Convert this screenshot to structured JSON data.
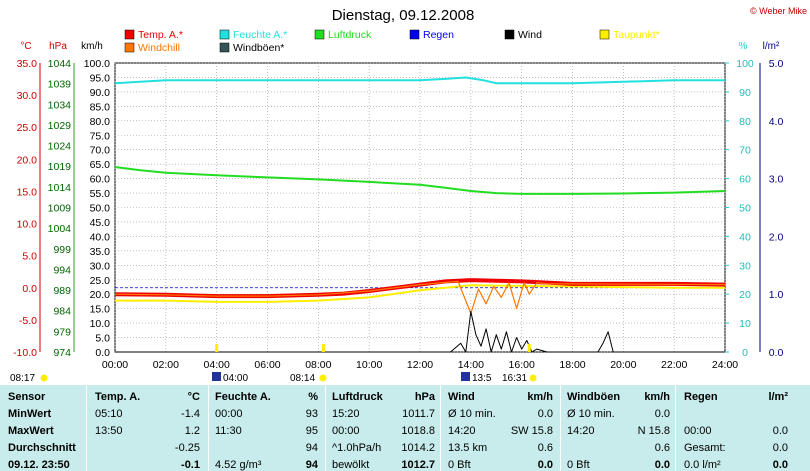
{
  "title": "Dienstag, 09.12.2008",
  "copyright": "© Weber Mike",
  "legend": [
    {
      "label": "Temp. A.*",
      "color": "#ee0000"
    },
    {
      "label": "Feuchte A.*",
      "color": "#22e0e0"
    },
    {
      "label": "Luftdruck",
      "color": "#22dd22"
    },
    {
      "label": "Regen",
      "color": "#0000ee"
    },
    {
      "label": "Wind",
      "color": "#000000"
    },
    {
      "label": "Taupunkt*",
      "color": "#ffee00"
    },
    {
      "label": "Windchill",
      "color": "#ff7700"
    },
    {
      "label": "Windböen*",
      "color": "#335555"
    }
  ],
  "axes": {
    "temp_unit": "°C",
    "pressure_unit": "hPa",
    "wind_unit": "km/h",
    "humidity_unit": "%",
    "rain_unit": "l/m²",
    "temp_ticks": [
      "35.0",
      "30.0",
      "25.0",
      "20.0",
      "15.0",
      "10.0",
      "5.0",
      "0.0",
      "-5.0",
      "-10.0"
    ],
    "pressure_ticks": [
      "1044",
      "1039",
      "1034",
      "1029",
      "1024",
      "1019",
      "1014",
      "1009",
      "1004",
      "999",
      "994",
      "989",
      "984",
      "979",
      "974"
    ],
    "wind_ticks": [
      "100.0",
      "95.0",
      "90.0",
      "85.0",
      "80.0",
      "75.0",
      "70.0",
      "65.0",
      "60.0",
      "55.0",
      "50.0",
      "45.0",
      "40.0",
      "35.0",
      "30.0",
      "25.0",
      "20.0",
      "15.0",
      "10.0",
      "5.0",
      "0.0"
    ],
    "humidity_ticks": [
      "100",
      "90",
      "80",
      "70",
      "60",
      "50",
      "40",
      "30",
      "20",
      "10",
      "0"
    ],
    "rain_ticks": [
      "5.0",
      "4.0",
      "3.0",
      "2.0",
      "1.0",
      "0.0"
    ],
    "time_ticks": [
      "00:00",
      "02:00",
      "04:00",
      "06:00",
      "08:00",
      "10:00",
      "12:00",
      "14:00",
      "16:00",
      "18:00",
      "20:00",
      "22:00",
      "24:00"
    ]
  },
  "events": {
    "sunrise": "08:17",
    "moonrise": "04:00",
    "moonrise2": "08:14",
    "moonset": "13:5",
    "sunset": "16:31"
  },
  "chart_data": {
    "type": "line",
    "x_unit": "hour",
    "series": [
      {
        "name": "Temp. A.*",
        "axis": "temp",
        "color": "#ee0000",
        "x": [
          0,
          2,
          4,
          6,
          8,
          9,
          10,
          11,
          12,
          13,
          14,
          15,
          16,
          17,
          18,
          20,
          22,
          24
        ],
        "y": [
          -1.0,
          -1.1,
          -1.3,
          -1.3,
          -1.1,
          -0.9,
          -0.5,
          0.0,
          0.5,
          1.0,
          1.2,
          1.1,
          1.0,
          0.8,
          0.6,
          0.6,
          0.6,
          0.5
        ]
      },
      {
        "name": "Feuchte A.*",
        "axis": "humidity",
        "color": "#22e0e0",
        "x": [
          0,
          1,
          2,
          4,
          6,
          8,
          10,
          12,
          13,
          13.8,
          14.5,
          15,
          16,
          18,
          20,
          22,
          24
        ],
        "y": [
          93,
          93.5,
          94,
          94,
          94,
          94,
          94,
          94,
          94.5,
          95,
          94,
          93,
          93,
          93,
          93.5,
          94,
          94
        ]
      },
      {
        "name": "Luftdruck",
        "axis": "pressure",
        "color": "#22dd22",
        "x": [
          0,
          1,
          2,
          4,
          6,
          8,
          10,
          12,
          13,
          14,
          15,
          16,
          18,
          20,
          22,
          24
        ],
        "y": [
          1018.8,
          1018.0,
          1017.4,
          1016.8,
          1016.3,
          1015.8,
          1015.2,
          1014.5,
          1013.8,
          1013.0,
          1012.5,
          1012.3,
          1012.3,
          1012.4,
          1012.6,
          1013.0
        ]
      },
      {
        "name": "Taupunkt*",
        "axis": "temp",
        "color": "#ffee00",
        "x": [
          0,
          2,
          4,
          6,
          8,
          10,
          12,
          14,
          16,
          18,
          20,
          22,
          24
        ],
        "y": [
          -2.0,
          -2.0,
          -2.2,
          -2.2,
          -2.0,
          -1.5,
          -0.4,
          0.4,
          0.3,
          0.2,
          0.1,
          0.0,
          0.0
        ]
      },
      {
        "name": "Windchill",
        "axis": "temp",
        "color": "#ff7700",
        "x": [
          0,
          2,
          4,
          6,
          8,
          10,
          12,
          13.5,
          14,
          14.3,
          14.6,
          14.9,
          15.2,
          15.5,
          15.8,
          16.1,
          16.3,
          16.6,
          17,
          18,
          24
        ],
        "y": [
          -1.0,
          -1.1,
          -1.3,
          -1.3,
          -1.1,
          -0.5,
          0.5,
          1.0,
          -4.0,
          -0.2,
          -2.5,
          0.2,
          -1.5,
          0.8,
          -3.2,
          0.8,
          -1.0,
          0.8,
          0.6,
          0.6,
          0.5
        ]
      },
      {
        "name": "Wind",
        "axis": "wind",
        "color": "#000000",
        "x": [
          0,
          13.2,
          13.6,
          13.8,
          14.0,
          14.2,
          14.4,
          14.6,
          14.8,
          15.0,
          15.2,
          15.4,
          15.6,
          15.8,
          16.0,
          16.2,
          16.4,
          16.6,
          17,
          19.0,
          19.2,
          19.4,
          19.6,
          20,
          24
        ],
        "y": [
          0,
          0,
          3,
          0,
          14,
          6,
          2,
          8,
          0,
          6,
          1,
          7,
          0,
          5,
          1,
          4,
          0,
          1,
          0,
          0,
          3,
          7,
          0,
          0,
          0
        ]
      }
    ]
  },
  "stats": {
    "headers": {
      "sensor": "Sensor",
      "temp": "Temp. A.",
      "temp_unit": "°C",
      "hum": "Feuchte A.",
      "hum_unit": "%",
      "press": "Luftdruck",
      "press_unit": "hPa",
      "wind": "Wind",
      "wind_unit": "km/h",
      "gust": "Windböen",
      "gust_unit": "km/h",
      "rain": "Regen",
      "rain_unit": "l/m²"
    },
    "rows": [
      {
        "label": "MinWert",
        "temp_time": "05:10",
        "temp": "-1.4",
        "hum_time": "00:00",
        "hum": "93",
        "press_time": "15:20",
        "press": "1011.7",
        "wind_a": "Ø 10 min.",
        "wind_b": "0.0",
        "gust_a": "Ø 10 min.",
        "gust_b": "0.0",
        "rain_a": "",
        "rain_b": ""
      },
      {
        "label": "MaxWert",
        "temp_time": "13:50",
        "temp": "1.2",
        "hum_time": "11:30",
        "hum": "95",
        "press_time": "00:00",
        "press": "1018.8",
        "wind_a": "14:20",
        "wind_dir": "SW 15.8",
        "wind_b": "",
        "gust_a": "14:20",
        "gust_dir": "N 15.8",
        "gust_b": "",
        "rain_a": "00:00",
        "rain_b": "0.0"
      },
      {
        "label": "Durchschnitt",
        "temp_time": "",
        "temp": "-0.25",
        "hum_time": "",
        "hum": "94",
        "press_time": "^1.0hPa/h",
        "press": "1014.2",
        "wind_a": "13.5 km",
        "wind_b": "0.6",
        "gust_a": "",
        "gust_b": "0.6",
        "rain_a": "Gesamt:",
        "rain_b": "0.0"
      },
      {
        "label": "09.12. 23:50",
        "temp_time": "",
        "temp": "-0.1",
        "hum_time": "4.52 g/m³",
        "hum": "94",
        "press_time": "bewölkt",
        "press": "1012.7",
        "wind_a": "0 Bft",
        "wind_b": "0.0",
        "gust_a": "0 Bft",
        "gust_b": "0.0",
        "rain_a": "0.0 l/m²",
        "rain_b": "0.0"
      }
    ]
  }
}
